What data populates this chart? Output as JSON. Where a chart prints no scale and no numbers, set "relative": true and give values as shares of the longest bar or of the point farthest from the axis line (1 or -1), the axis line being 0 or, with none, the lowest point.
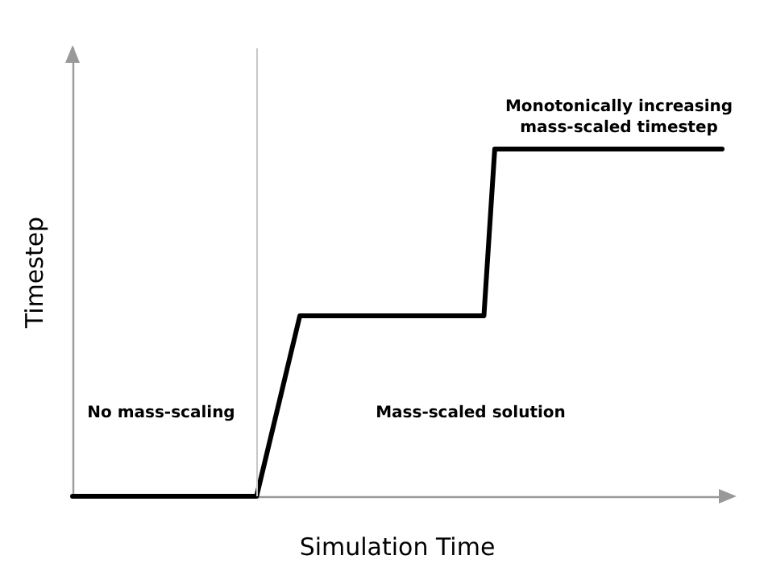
{
  "chart_data": {
    "type": "line",
    "relative": true,
    "xlabel": "Simulation Time",
    "ylabel": "Timestep",
    "categories": [
      null,
      null,
      null,
      null,
      null,
      null,
      null,
      null,
      null,
      null,
      null,
      null,
      null,
      null,
      null,
      null,
      null,
      null,
      null,
      null,
      null,
      null,
      null,
      null,
      null,
      null,
      null,
      null,
      null,
      null,
      null,
      null,
      null,
      null,
      null,
      null,
      null,
      null,
      null,
      null,
      null,
      null,
      null,
      null,
      null,
      null,
      null,
      null,
      null,
      null,
      null,
      null,
      null,
      null,
      null,
      null,
      null,
      null,
      null,
      null,
      null
    ],
    "series": [
      {
        "color": "#000000",
        "values": [
          0,
          0,
          0,
          0,
          0,
          0,
          0,
          0,
          0,
          0,
          0,
          0,
          0,
          0,
          0,
          0,
          0,
          0,
          0.13,
          0.26,
          0.39,
          0.52,
          0.52,
          0.52,
          0.52,
          0.52,
          0.52,
          0.52,
          0.52,
          0.52,
          0.52,
          0.52,
          0.52,
          0.52,
          0.52,
          0.52,
          0.52,
          0.52,
          0.52,
          1,
          1,
          1,
          1,
          1,
          1,
          1,
          1,
          1,
          1,
          1,
          1,
          1,
          1,
          1,
          1,
          1,
          1,
          1,
          1,
          1,
          1
        ]
      }
    ],
    "annotations": [
      "No mass-scaling",
      "Mass-scaled solution",
      "Monotonically increasing\nmass-scaled timestep"
    ],
    "grid": false,
    "marker": "none",
    "line_style": "solid",
    "tick_labels": false
  }
}
